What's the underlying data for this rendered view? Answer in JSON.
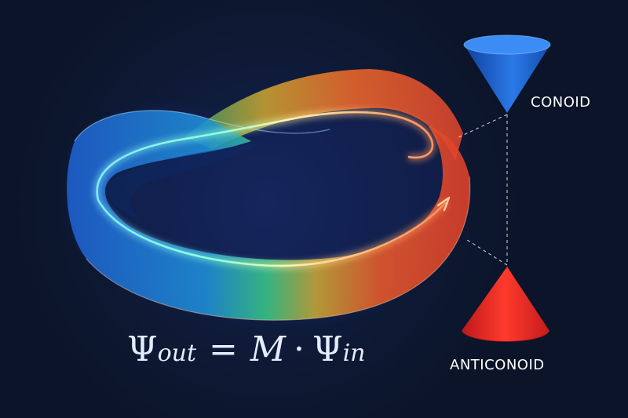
{
  "labels": {
    "conoid": "CONOID",
    "anticonoid": "ANTICONOID"
  },
  "equation": {
    "psi": "Ψ",
    "out_sub": "out",
    "equals": "=",
    "matrix": "M",
    "dot": "·",
    "in_sub": "in"
  },
  "colors": {
    "background": "#0b1428",
    "band_start": "#1f6fd6",
    "band_mid": "#2bd07a",
    "band_end": "#e8452a",
    "conoid_fill": "#1a5fd0",
    "anticonoid_fill": "#e0221f",
    "text": "#ffffff"
  },
  "icons": {
    "path_arrow": "arrow-head-icon"
  }
}
